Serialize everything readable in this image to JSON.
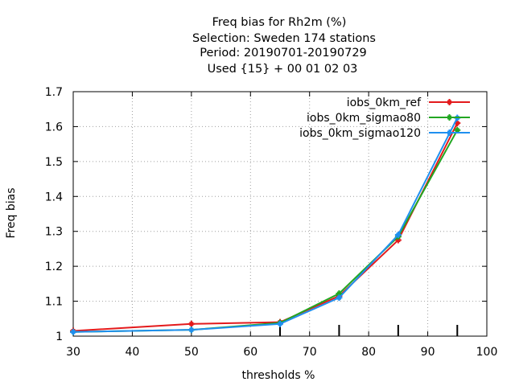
{
  "chart_data": {
    "type": "line",
    "title_lines": [
      "Freq bias  for Rh2m (%)",
      "Selection: Sweden    174 stations",
      "Period: 20190701-20190729",
      "Used {15} + 00 01 02 03"
    ],
    "xlabel": "thresholds %",
    "ylabel": "Freq bias",
    "xlim": [
      30,
      100
    ],
    "ylim": [
      1,
      1.7
    ],
    "xticks": [
      "30",
      "40",
      "50",
      "60",
      "70",
      "80",
      "90",
      "100"
    ],
    "yticks": [
      "1",
      "1.1",
      "1.2",
      "1.3",
      "1.4",
      "1.5",
      "1.6",
      "1.7"
    ],
    "grid": true,
    "legend_position": "top-right",
    "series": [
      {
        "name": "iobs_0km_ref",
        "color": "#e31a1c",
        "x": [
          30,
          50,
          65,
          75,
          85,
          95
        ],
        "y": [
          1.015,
          1.035,
          1.04,
          1.115,
          1.275,
          1.61
        ]
      },
      {
        "name": "iobs_0km_sigmao80",
        "color": "#22a722",
        "x": [
          30,
          50,
          65,
          75,
          85,
          95
        ],
        "y": [
          1.012,
          1.018,
          1.038,
          1.122,
          1.285,
          1.59
        ]
      },
      {
        "name": "iobs_0km_sigmao120",
        "color": "#1f8fef",
        "x": [
          30,
          50,
          65,
          75,
          85,
          95
        ],
        "y": [
          1.012,
          1.018,
          1.035,
          1.11,
          1.29,
          1.625
        ]
      }
    ],
    "bottom_markers": [
      65,
      75,
      85,
      95
    ]
  }
}
